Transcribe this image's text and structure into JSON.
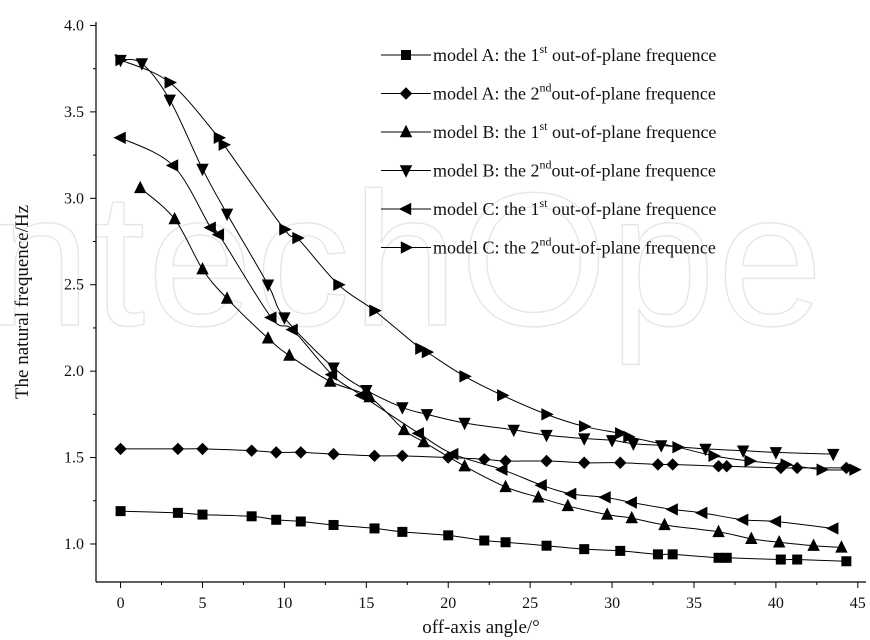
{
  "chart_data": {
    "type": "line",
    "watermark": "ntechOpe",
    "xlabel": "off-axis angle/°",
    "ylabel": "The natural frequence/Hz",
    "xlim": [
      -1.5,
      45.5
    ],
    "ylim": [
      0.78,
      4.02
    ],
    "x_ticks": [
      0,
      5,
      10,
      15,
      20,
      25,
      30,
      35,
      40,
      45
    ],
    "y_ticks": [
      1.0,
      1.5,
      2.0,
      2.5,
      3.0,
      3.5,
      4.0
    ],
    "x_tick_labels": [
      "0",
      "5",
      "10",
      "15",
      "20",
      "25",
      "30",
      "35",
      "40",
      "45"
    ],
    "y_tick_labels": [
      "1.0",
      "1.5",
      "2.0",
      "2.5",
      "3.0",
      "3.5",
      "4.0"
    ],
    "grid": false,
    "legend_position": "top-right",
    "series": [
      {
        "name": "model A: the 1st out-of-plane  frequence",
        "legend_prefix": "model A: the 1",
        "legend_sup": "st",
        "legend_suffix": " out-of-plane  frequence",
        "marker": "square",
        "x": [
          0,
          3.5,
          5,
          8,
          9.5,
          11,
          13,
          15.5,
          17.2,
          20,
          22.2,
          23.5,
          26,
          28.3,
          30.5,
          32.8,
          33.7,
          36.5,
          37,
          40.3,
          41.3,
          44.3
        ],
        "y": [
          1.19,
          1.18,
          1.17,
          1.16,
          1.14,
          1.13,
          1.11,
          1.09,
          1.07,
          1.05,
          1.02,
          1.01,
          0.99,
          0.97,
          0.96,
          0.94,
          0.94,
          0.92,
          0.92,
          0.91,
          0.91,
          0.9
        ]
      },
      {
        "name": "model A: the 2nd out-of-plane  frequence",
        "legend_prefix": "model A: the 2",
        "legend_sup": "nd",
        "legend_suffix": "out-of-plane  frequence",
        "marker": "diamond",
        "x": [
          0,
          3.5,
          5,
          8,
          9.5,
          11,
          13,
          15.5,
          17.2,
          20,
          22.2,
          23.5,
          26,
          28.3,
          30.5,
          32.8,
          33.7,
          36.5,
          37,
          40.3,
          41.3,
          44.3
        ],
        "y": [
          1.55,
          1.55,
          1.55,
          1.54,
          1.53,
          1.53,
          1.52,
          1.51,
          1.51,
          1.5,
          1.49,
          1.48,
          1.48,
          1.47,
          1.47,
          1.46,
          1.46,
          1.45,
          1.45,
          1.44,
          1.44,
          1.44
        ]
      },
      {
        "name": "model B: the 1st out-of-plane  frequence",
        "legend_prefix": "model B: the 1",
        "legend_sup": "st",
        "legend_suffix": " out-of-plane  frequence",
        "marker": "triangle-up",
        "x": [
          1.2,
          3.3,
          5,
          6.5,
          9,
          10.3,
          12.8,
          15.2,
          17.3,
          18.5,
          21,
          23.5,
          25.5,
          27.3,
          29.7,
          31.2,
          33.2,
          36.5,
          38.5,
          40.2,
          42.3,
          44
        ],
        "y": [
          3.06,
          2.88,
          2.59,
          2.42,
          2.19,
          2.09,
          1.94,
          1.85,
          1.66,
          1.59,
          1.45,
          1.33,
          1.27,
          1.22,
          1.17,
          1.15,
          1.11,
          1.07,
          1.03,
          1.01,
          0.99,
          0.98
        ]
      },
      {
        "name": "model B: the 2nd out-of-plane  frequence",
        "legend_prefix": "model B: the 2",
        "legend_sup": "nd",
        "legend_suffix": "out-of-plane  frequence",
        "marker": "triangle-down",
        "x": [
          0,
          1.3,
          3,
          5,
          6.5,
          9,
          10,
          13,
          15,
          17.2,
          18.7,
          21,
          24,
          26,
          28.3,
          30,
          31.3,
          33,
          35.7,
          38,
          40,
          43.5
        ],
        "y": [
          3.8,
          3.78,
          3.57,
          3.17,
          2.91,
          2.5,
          2.31,
          2.02,
          1.89,
          1.79,
          1.75,
          1.7,
          1.66,
          1.63,
          1.61,
          1.6,
          1.58,
          1.57,
          1.55,
          1.54,
          1.53,
          1.52
        ]
      },
      {
        "name": "model C: the 1st out-of-plane  frequence",
        "legend_prefix": "model C: the 1",
        "legend_sup": "st",
        "legend_suffix": " out-of-plane  frequence",
        "marker": "triangle-left",
        "x": [
          0,
          3.2,
          5.5,
          6,
          9.2,
          10.5,
          12.9,
          14.7,
          18.2,
          20.3,
          23.3,
          25.7,
          27.5,
          29.6,
          31.2,
          33.7,
          35.5,
          38,
          40,
          43.5
        ],
        "y": [
          3.35,
          3.19,
          2.83,
          2.79,
          2.31,
          2.24,
          1.98,
          1.86,
          1.64,
          1.52,
          1.43,
          1.34,
          1.29,
          1.27,
          1.24,
          1.2,
          1.18,
          1.14,
          1.13,
          1.09
        ]
      },
      {
        "name": "model C: the 2nd out-of-plane  frequence",
        "legend_prefix": "model C: the 2",
        "legend_sup": "nd",
        "legend_suffix": "out-of-plane  frequence",
        "marker": "triangle-right",
        "x": [
          0,
          3,
          6,
          6.3,
          10,
          10.8,
          13.3,
          15.5,
          18.3,
          18.7,
          21,
          23.3,
          26,
          28.3,
          30.5,
          31,
          34,
          36.2,
          38.4,
          40.6,
          42.8,
          44.8
        ],
        "y": [
          3.8,
          3.67,
          3.35,
          3.31,
          2.82,
          2.77,
          2.5,
          2.35,
          2.13,
          2.11,
          1.97,
          1.86,
          1.75,
          1.68,
          1.64,
          1.62,
          1.56,
          1.51,
          1.48,
          1.46,
          1.43,
          1.43
        ]
      }
    ]
  }
}
